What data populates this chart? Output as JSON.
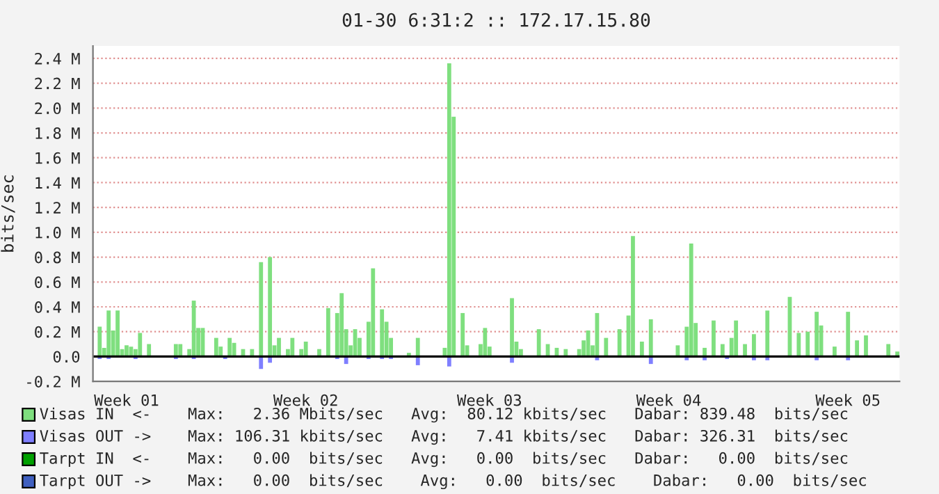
{
  "chart_data": {
    "type": "bar",
    "title": "01-30 6:31:2 :: 172.17.15.80",
    "ylabel": "bits/sec",
    "categories": [
      null,
      null,
      null,
      null,
      null,
      null,
      null,
      "Week 01",
      null,
      null,
      null,
      null,
      null,
      null,
      null,
      null,
      null,
      null,
      null,
      null,
      null,
      null,
      null,
      null,
      null,
      null,
      null,
      null,
      null,
      null,
      null,
      null,
      null,
      null,
      null,
      null,
      null,
      null,
      null,
      null,
      null,
      null,
      null,
      null,
      null,
      null,
      null,
      "Week 02",
      null,
      null,
      null,
      null,
      null,
      null,
      null,
      null,
      null,
      null,
      null,
      null,
      null,
      null,
      null,
      null,
      null,
      null,
      null,
      null,
      null,
      null,
      null,
      null,
      null,
      null,
      null,
      null,
      null,
      null,
      null,
      null,
      null,
      null,
      null,
      null,
      null,
      null,
      null,
      null,
      "Week 03",
      null,
      null,
      null,
      null,
      null,
      null,
      null,
      null,
      null,
      null,
      null,
      null,
      null,
      null,
      null,
      null,
      null,
      null,
      null,
      null,
      null,
      null,
      null,
      null,
      null,
      null,
      null,
      null,
      null,
      null,
      null,
      null,
      null,
      null,
      null,
      null,
      null,
      null,
      null,
      "Week 04",
      null,
      null,
      null,
      null,
      null,
      null,
      null,
      null,
      null,
      null,
      null,
      null,
      null,
      null,
      null,
      null,
      null,
      null,
      null,
      null,
      null,
      null,
      null,
      null,
      null,
      null,
      null,
      null,
      null,
      null,
      null,
      null,
      null,
      null,
      null,
      null,
      null,
      null,
      null,
      "Week 05",
      null,
      null,
      null,
      null,
      null,
      null,
      null,
      null,
      null,
      null,
      null
    ],
    "ylim": [
      -0.2,
      2.5
    ],
    "yticks": [
      {
        "value": -0.2,
        "label": "-0.2 M"
      },
      {
        "value": 0,
        "label": "0.0"
      },
      {
        "value": 0.2,
        "label": "0.2 M"
      },
      {
        "value": 0.4,
        "label": "0.4 M"
      },
      {
        "value": 0.6,
        "label": "0.6 M"
      },
      {
        "value": 0.8,
        "label": "0.8 M"
      },
      {
        "value": 1.0,
        "label": "1.0 M"
      },
      {
        "value": 1.2,
        "label": "1.2 M"
      },
      {
        "value": 1.4,
        "label": "1.4 M"
      },
      {
        "value": 1.6,
        "label": "1.6 M"
      },
      {
        "value": 1.8,
        "label": "1.8 M"
      },
      {
        "value": 2.0,
        "label": "2.0 M"
      },
      {
        "value": 2.2,
        "label": "2.2 M"
      },
      {
        "value": 2.4,
        "label": "2.4 M"
      }
    ],
    "grid": "y",
    "legend": "bottom",
    "ref_lines": [
      {
        "axis": "y",
        "value": 0,
        "label": null,
        "color": "#000000"
      }
    ],
    "series": [
      {
        "name": "Visas IN  <-",
        "color": "#7fdf7f",
        "values": [
          null,
          0.24,
          0.07,
          0.37,
          0.21,
          0.37,
          0.06,
          0.09,
          0.08,
          0.06,
          0.19,
          null,
          0.1,
          null,
          null,
          null,
          null,
          null,
          0.1,
          0.1,
          null,
          0.06,
          0.45,
          0.23,
          0.23,
          null,
          null,
          0.15,
          0.08,
          null,
          0.15,
          0.11,
          null,
          0.06,
          null,
          0.06,
          null,
          0.76,
          null,
          0.8,
          0.09,
          0.15,
          null,
          0.06,
          0.15,
          null,
          0.06,
          0.12,
          null,
          null,
          0.06,
          null,
          0.39,
          null,
          0.35,
          0.51,
          0.22,
          0.09,
          0.22,
          0.15,
          null,
          0.28,
          0.71,
          null,
          0.38,
          0.28,
          0.15,
          null,
          null,
          null,
          0.03,
          null,
          0.15,
          null,
          null,
          null,
          null,
          null,
          0.07,
          2.36,
          1.93,
          null,
          0.35,
          0.09,
          null,
          null,
          0.1,
          0.23,
          0.08,
          null,
          null,
          null,
          null,
          0.47,
          0.12,
          0.06,
          null,
          null,
          null,
          0.22,
          null,
          0.1,
          null,
          0.07,
          null,
          0.06,
          null,
          null,
          0.06,
          0.13,
          0.21,
          0.09,
          0.35,
          null,
          0.15,
          null,
          null,
          0.22,
          null,
          0.33,
          0.97,
          null,
          0.12,
          null,
          0.3,
          null,
          null,
          null,
          null,
          null,
          0.09,
          null,
          0.24,
          0.91,
          0.27,
          null,
          0.07,
          null,
          0.29,
          null,
          0.1,
          null,
          0.15,
          0.29,
          null,
          0.1,
          null,
          0.18,
          null,
          null,
          0.37,
          null,
          null,
          null,
          null,
          0.48,
          null,
          0.19,
          null,
          0.2,
          null,
          0.36,
          0.25,
          null,
          null,
          0.08,
          null,
          null,
          0.36,
          null,
          0.13,
          null,
          0.17,
          null,
          null,
          null,
          null,
          0.1,
          null,
          0.04
        ]
      },
      {
        "name": "Visas OUT ->",
        "color": "#7f7fff",
        "values": [
          null,
          -0.02,
          null,
          -0.02,
          null,
          null,
          null,
          null,
          null,
          -0.02,
          null,
          null,
          null,
          null,
          null,
          null,
          null,
          null,
          -0.02,
          null,
          null,
          null,
          -0.02,
          null,
          null,
          null,
          null,
          null,
          null,
          -0.02,
          null,
          null,
          null,
          null,
          null,
          null,
          null,
          -0.1,
          null,
          -0.05,
          null,
          null,
          null,
          null,
          null,
          null,
          null,
          null,
          null,
          null,
          null,
          null,
          null,
          null,
          -0.02,
          null,
          -0.06,
          null,
          null,
          null,
          null,
          -0.02,
          null,
          null,
          -0.02,
          null,
          -0.02,
          null,
          null,
          null,
          null,
          null,
          -0.07,
          null,
          null,
          null,
          null,
          null,
          null,
          -0.08,
          null,
          null,
          null,
          null,
          null,
          null,
          null,
          null,
          null,
          null,
          null,
          null,
          null,
          -0.05,
          null,
          null,
          null,
          null,
          null,
          null,
          null,
          null,
          null,
          null,
          null,
          null,
          null,
          null,
          null,
          null,
          null,
          null,
          -0.03,
          null,
          null,
          null,
          null,
          null,
          null,
          null,
          null,
          null,
          null,
          null,
          -0.06,
          null,
          null,
          null,
          null,
          null,
          null,
          null,
          -0.03,
          null,
          null,
          null,
          -0.03,
          null,
          null,
          null,
          null,
          -0.02,
          null,
          null,
          null,
          null,
          null,
          -0.03,
          null,
          null,
          -0.03,
          null,
          null,
          null,
          null,
          null,
          null,
          null,
          null,
          null,
          null,
          -0.03,
          null,
          null,
          null,
          null,
          null,
          null,
          -0.03,
          null,
          null,
          null,
          null,
          null,
          null,
          null,
          null,
          null,
          null,
          null
        ]
      },
      {
        "name": "Tarpt IN  <-",
        "color": "#00a000",
        "values": [
          0,
          0,
          0,
          0,
          0,
          0,
          0,
          0,
          0,
          0,
          0,
          0,
          0,
          0,
          0,
          0,
          0,
          0,
          0,
          0,
          0,
          0,
          0,
          0,
          0,
          0,
          0,
          0,
          0,
          0,
          0,
          0,
          0,
          0,
          0,
          0,
          0,
          0,
          0,
          0,
          0,
          0,
          0,
          0,
          0,
          0,
          0,
          0,
          0,
          0,
          0,
          0,
          0,
          0,
          0,
          0,
          0,
          0,
          0,
          0,
          0,
          0,
          0,
          0,
          0,
          0,
          0,
          0,
          0,
          0,
          0,
          0,
          0,
          0,
          0,
          0,
          0,
          0,
          0,
          0,
          0,
          0,
          0,
          0,
          0,
          0,
          0,
          0,
          0,
          0,
          0,
          0,
          0,
          0,
          0,
          0,
          0,
          0,
          0,
          0,
          0,
          0,
          0,
          0,
          0,
          0,
          0,
          0,
          0,
          0,
          0,
          0,
          0,
          0,
          0,
          0,
          0,
          0,
          0,
          0,
          0,
          0,
          0,
          0,
          0,
          0,
          0,
          0,
          0,
          0,
          0,
          0,
          0,
          0,
          0,
          0,
          0,
          0,
          0,
          0,
          0,
          0,
          0,
          0,
          0,
          0,
          0,
          0,
          0,
          0,
          0,
          0,
          0,
          0,
          0,
          0,
          0,
          0,
          0,
          0,
          0,
          0,
          0,
          0,
          0,
          0,
          0,
          0,
          0,
          0,
          0,
          0,
          0,
          0,
          0,
          0,
          0,
          0,
          0,
          0
        ]
      },
      {
        "name": "Tarpt OUT ->",
        "color": "#4060c0",
        "values": [
          0,
          0,
          0,
          0,
          0,
          0,
          0,
          0,
          0,
          0,
          0,
          0,
          0,
          0,
          0,
          0,
          0,
          0,
          0,
          0,
          0,
          0,
          0,
          0,
          0,
          0,
          0,
          0,
          0,
          0,
          0,
          0,
          0,
          0,
          0,
          0,
          0,
          0,
          0,
          0,
          0,
          0,
          0,
          0,
          0,
          0,
          0,
          0,
          0,
          0,
          0,
          0,
          0,
          0,
          0,
          0,
          0,
          0,
          0,
          0,
          0,
          0,
          0,
          0,
          0,
          0,
          0,
          0,
          0,
          0,
          0,
          0,
          0,
          0,
          0,
          0,
          0,
          0,
          0,
          0,
          0,
          0,
          0,
          0,
          0,
          0,
          0,
          0,
          0,
          0,
          0,
          0,
          0,
          0,
          0,
          0,
          0,
          0,
          0,
          0,
          0,
          0,
          0,
          0,
          0,
          0,
          0,
          0,
          0,
          0,
          0,
          0,
          0,
          0,
          0,
          0,
          0,
          0,
          0,
          0,
          0,
          0,
          0,
          0,
          0,
          0,
          0,
          0,
          0,
          0,
          0,
          0,
          0,
          0,
          0,
          0,
          0,
          0,
          0,
          0,
          0,
          0,
          0,
          0,
          0,
          0,
          0,
          0,
          0,
          0,
          0,
          0,
          0,
          0,
          0,
          0,
          0,
          0,
          0,
          0,
          0,
          0,
          0,
          0,
          0,
          0,
          0,
          0,
          0,
          0,
          0,
          0,
          0,
          0,
          0,
          0,
          0,
          0,
          0,
          0
        ]
      }
    ],
    "annotations": [
      "Max:   2.36 Mbits/sec   Avg:  80.12 kbits/sec   Dabar: 839.48  bits/sec",
      "Max: 106.31 kbits/sec   Avg:   7.41 kbits/sec   Dabar: 326.31  bits/sec",
      "Max:   0.00  bits/sec   Avg:   0.00  bits/sec   Dabar:   0.00  bits/sec",
      "Max:   0.00  bits/sec    Avg:   0.00  bits/sec    Dabar:   0.00  bits/sec"
    ]
  }
}
